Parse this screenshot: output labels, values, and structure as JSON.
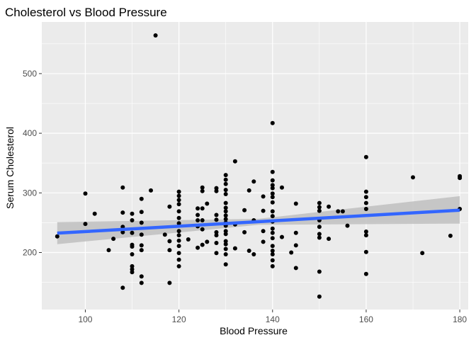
{
  "chart_data": {
    "type": "scatter",
    "title": "Cholesterol vs Blood Pressure",
    "xlabel": "Blood Pressure",
    "ylabel": "Serum Cholesterol",
    "xlim": [
      90.7,
      181.8
    ],
    "ylim": [
      104.4,
      586.6
    ],
    "xticks": [
      100,
      120,
      140,
      160,
      180
    ],
    "yticks": [
      200,
      300,
      400,
      500
    ],
    "grid": true,
    "colors": {
      "panel": "#ebebeb",
      "grid_major": "#ffffff",
      "points": "#000000",
      "smooth_line": "#3366ff",
      "confidence_band": "#c0c0c0"
    },
    "points": [
      [
        94,
        227
      ],
      [
        100,
        299
      ],
      [
        100,
        248
      ],
      [
        102,
        265
      ],
      [
        105,
        204
      ],
      [
        106,
        223
      ],
      [
        108,
        309
      ],
      [
        108,
        267
      ],
      [
        108,
        243
      ],
      [
        108,
        234
      ],
      [
        108,
        141
      ],
      [
        110,
        265
      ],
      [
        110,
        254
      ],
      [
        110,
        233
      ],
      [
        110,
        213
      ],
      [
        110,
        210
      ],
      [
        110,
        197
      ],
      [
        110,
        177
      ],
      [
        110,
        172
      ],
      [
        110,
        167
      ],
      [
        112,
        290
      ],
      [
        112,
        268
      ],
      [
        112,
        250
      ],
      [
        112,
        230
      ],
      [
        112,
        212
      ],
      [
        112,
        204
      ],
      [
        112,
        160
      ],
      [
        112,
        149
      ],
      [
        114,
        304
      ],
      [
        115,
        564
      ],
      [
        117,
        230
      ],
      [
        118,
        277
      ],
      [
        118,
        219
      ],
      [
        118,
        204
      ],
      [
        118,
        149
      ],
      [
        120,
        302
      ],
      [
        120,
        295
      ],
      [
        120,
        288
      ],
      [
        120,
        281
      ],
      [
        120,
        269
      ],
      [
        120,
        258
      ],
      [
        120,
        249
      ],
      [
        120,
        236
      ],
      [
        120,
        229
      ],
      [
        120,
        220
      ],
      [
        120,
        211
      ],
      [
        120,
        199
      ],
      [
        120,
        188
      ],
      [
        120,
        177
      ],
      [
        122,
        222
      ],
      [
        124,
        274
      ],
      [
        124,
        263
      ],
      [
        124,
        254
      ],
      [
        124,
        244
      ],
      [
        124,
        208
      ],
      [
        125,
        309
      ],
      [
        125,
        303
      ],
      [
        125,
        274
      ],
      [
        125,
        254
      ],
      [
        125,
        239
      ],
      [
        125,
        213
      ],
      [
        126,
        282
      ],
      [
        126,
        218
      ],
      [
        128,
        308
      ],
      [
        128,
        303
      ],
      [
        128,
        263
      ],
      [
        128,
        255
      ],
      [
        128,
        234
      ],
      [
        128,
        229
      ],
      [
        128,
        216
      ],
      [
        128,
        199
      ],
      [
        130,
        330
      ],
      [
        130,
        322
      ],
      [
        130,
        315
      ],
      [
        130,
        305
      ],
      [
        130,
        298
      ],
      [
        130,
        283
      ],
      [
        130,
        275
      ],
      [
        130,
        269
      ],
      [
        130,
        262
      ],
      [
        130,
        256
      ],
      [
        130,
        250
      ],
      [
        130,
        245
      ],
      [
        130,
        236
      ],
      [
        130,
        231
      ],
      [
        130,
        219
      ],
      [
        130,
        214
      ],
      [
        130,
        206
      ],
      [
        130,
        197
      ],
      [
        130,
        180
      ],
      [
        132,
        353
      ],
      [
        132,
        247
      ],
      [
        132,
        207
      ],
      [
        134,
        271
      ],
      [
        134,
        234
      ],
      [
        135,
        304
      ],
      [
        135,
        203
      ],
      [
        136,
        319
      ],
      [
        136,
        254
      ],
      [
        136,
        197
      ],
      [
        138,
        294
      ],
      [
        138,
        270
      ],
      [
        138,
        236
      ],
      [
        138,
        218
      ],
      [
        140,
        417
      ],
      [
        140,
        335
      ],
      [
        140,
        321
      ],
      [
        140,
        313
      ],
      [
        140,
        308
      ],
      [
        140,
        299
      ],
      [
        140,
        293
      ],
      [
        140,
        284
      ],
      [
        140,
        269
      ],
      [
        140,
        261
      ],
      [
        140,
        252
      ],
      [
        140,
        240
      ],
      [
        140,
        233
      ],
      [
        140,
        224
      ],
      [
        140,
        211
      ],
      [
        140,
        203
      ],
      [
        140,
        197
      ],
      [
        140,
        187
      ],
      [
        140,
        177
      ],
      [
        142,
        309
      ],
      [
        142,
        226
      ],
      [
        144,
        200
      ],
      [
        145,
        282
      ],
      [
        145,
        233
      ],
      [
        145,
        212
      ],
      [
        145,
        174
      ],
      [
        150,
        283
      ],
      [
        150,
        276
      ],
      [
        150,
        270
      ],
      [
        150,
        254
      ],
      [
        150,
        243
      ],
      [
        150,
        231
      ],
      [
        150,
        225
      ],
      [
        150,
        168
      ],
      [
        150,
        126
      ],
      [
        152,
        277
      ],
      [
        152,
        223
      ],
      [
        154,
        269
      ],
      [
        155,
        269
      ],
      [
        156,
        245
      ],
      [
        160,
        360
      ],
      [
        160,
        302
      ],
      [
        160,
        293
      ],
      [
        160,
        283
      ],
      [
        160,
        273
      ],
      [
        160,
        235
      ],
      [
        160,
        229
      ],
      [
        160,
        201
      ],
      [
        160,
        164
      ],
      [
        170,
        326
      ],
      [
        172,
        199
      ],
      [
        178,
        228
      ],
      [
        180,
        328
      ],
      [
        180,
        325
      ],
      [
        180,
        273
      ]
    ],
    "smooth": {
      "method": "lm",
      "line": [
        [
          94,
          232.5
        ],
        [
          180,
          271.0
        ]
      ],
      "band": {
        "x": [
          94,
          137,
          180
        ],
        "lower": [
          214.0,
          246.4,
          248.5
        ],
        "upper": [
          251.0,
          256.6,
          294.5
        ]
      }
    }
  }
}
